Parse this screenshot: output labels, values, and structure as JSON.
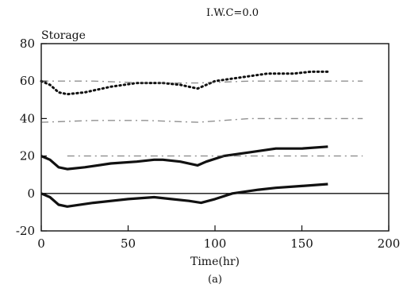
{
  "chart_data": {
    "type": "line",
    "title": "I.W.C=0.0",
    "ylabel": "Storage",
    "xlabel": "Time(hr)",
    "caption": "(a)",
    "xlim": [
      0,
      200
    ],
    "ylim": [
      -20,
      80
    ],
    "x_ticks": [
      0,
      50,
      100,
      150,
      200
    ],
    "y_ticks": [
      -20,
      0,
      20,
      40,
      60,
      80
    ],
    "grid": false,
    "series": [
      {
        "style": "dotted",
        "color": "#111111",
        "x": [
          0,
          5,
          10,
          15,
          25,
          40,
          55,
          70,
          80,
          85,
          90,
          100,
          115,
          130,
          145,
          155,
          165
        ],
        "y": [
          60,
          58,
          54,
          53,
          54,
          57,
          59,
          59,
          58,
          57,
          56,
          60,
          62,
          64,
          64,
          65,
          65
        ]
      },
      {
        "style": "solid-thick",
        "color": "#111111",
        "x": [
          0,
          5,
          10,
          15,
          25,
          40,
          55,
          65,
          70,
          80,
          90,
          95,
          105,
          120,
          135,
          150,
          165
        ],
        "y": [
          20,
          18,
          14,
          13,
          14,
          16,
          17,
          18,
          18,
          17,
          15,
          17,
          20,
          22,
          24,
          24,
          25
        ]
      },
      {
        "style": "solid-thick",
        "color": "#111111",
        "x": [
          0,
          5,
          10,
          15,
          30,
          50,
          65,
          75,
          85,
          92,
          100,
          110,
          125,
          135,
          150,
          165
        ],
        "y": [
          0,
          -2,
          -6,
          -7,
          -5,
          -3,
          -2,
          -3,
          -4,
          -5,
          -3,
          0,
          2,
          3,
          4,
          5
        ]
      },
      {
        "style": "faint-dashdot",
        "color": "#555555",
        "x": [
          0,
          30,
          60,
          90,
          120,
          150,
          185
        ],
        "y": [
          60,
          60,
          59,
          59,
          60,
          60,
          60
        ]
      },
      {
        "style": "faint-dashdot",
        "color": "#555555",
        "x": [
          0,
          30,
          60,
          90,
          120,
          150,
          185
        ],
        "y": [
          38,
          39,
          39,
          38,
          40,
          40,
          40
        ]
      },
      {
        "style": "faint-dashdot",
        "color": "#555555",
        "x": [
          15,
          50,
          90,
          120,
          150,
          185
        ],
        "y": [
          20,
          20,
          20,
          20,
          20,
          20
        ]
      }
    ],
    "reference_line": {
      "y": 0
    }
  }
}
